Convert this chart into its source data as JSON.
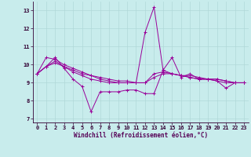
{
  "xlabel": "Windchill (Refroidissement éolien,°C)",
  "background_color": "#c8ecec",
  "grid_color": "#b0d8d8",
  "line_color": "#990099",
  "x_hours": [
    0,
    1,
    2,
    3,
    4,
    5,
    6,
    7,
    8,
    9,
    10,
    11,
    12,
    13,
    14,
    15,
    16,
    17,
    18,
    19,
    20,
    21,
    22,
    23
  ],
  "series": [
    [
      9.5,
      9.9,
      10.4,
      9.8,
      9.2,
      8.8,
      7.4,
      8.5,
      8.5,
      8.5,
      8.6,
      8.6,
      8.4,
      8.4,
      9.7,
      10.4,
      9.3,
      9.5,
      9.2,
      9.2,
      9.1,
      8.7,
      9.0,
      9.0
    ],
    [
      9.5,
      10.4,
      10.3,
      10.0,
      9.8,
      9.6,
      9.4,
      9.3,
      9.2,
      9.1,
      9.1,
      9.0,
      11.8,
      13.2,
      9.7,
      9.5,
      9.4,
      9.3,
      9.2,
      9.2,
      9.2,
      9.1,
      9.0,
      9.0
    ],
    [
      9.5,
      9.9,
      10.1,
      9.9,
      9.7,
      9.5,
      9.4,
      9.2,
      9.1,
      9.0,
      9.0,
      9.0,
      9.0,
      9.5,
      9.6,
      9.5,
      9.4,
      9.4,
      9.3,
      9.2,
      9.2,
      9.1,
      9.0,
      9.0
    ],
    [
      9.5,
      9.9,
      10.2,
      9.9,
      9.6,
      9.4,
      9.2,
      9.1,
      9.0,
      9.0,
      9.0,
      9.0,
      9.0,
      9.3,
      9.5,
      9.5,
      9.4,
      9.3,
      9.2,
      9.2,
      9.1,
      9.0,
      9.0,
      9.0
    ]
  ],
  "xlim": [
    -0.5,
    23.5
  ],
  "ylim": [
    6.8,
    13.5
  ],
  "yticks": [
    7,
    8,
    9,
    10,
    11,
    12,
    13
  ],
  "xticks": [
    0,
    1,
    2,
    3,
    4,
    5,
    6,
    7,
    8,
    9,
    10,
    11,
    12,
    13,
    14,
    15,
    16,
    17,
    18,
    19,
    20,
    21,
    22,
    23
  ],
  "tick_fontsize": 5.0,
  "xlabel_fontsize": 5.5,
  "marker": "+",
  "markersize": 2.5,
  "linewidth": 0.7
}
